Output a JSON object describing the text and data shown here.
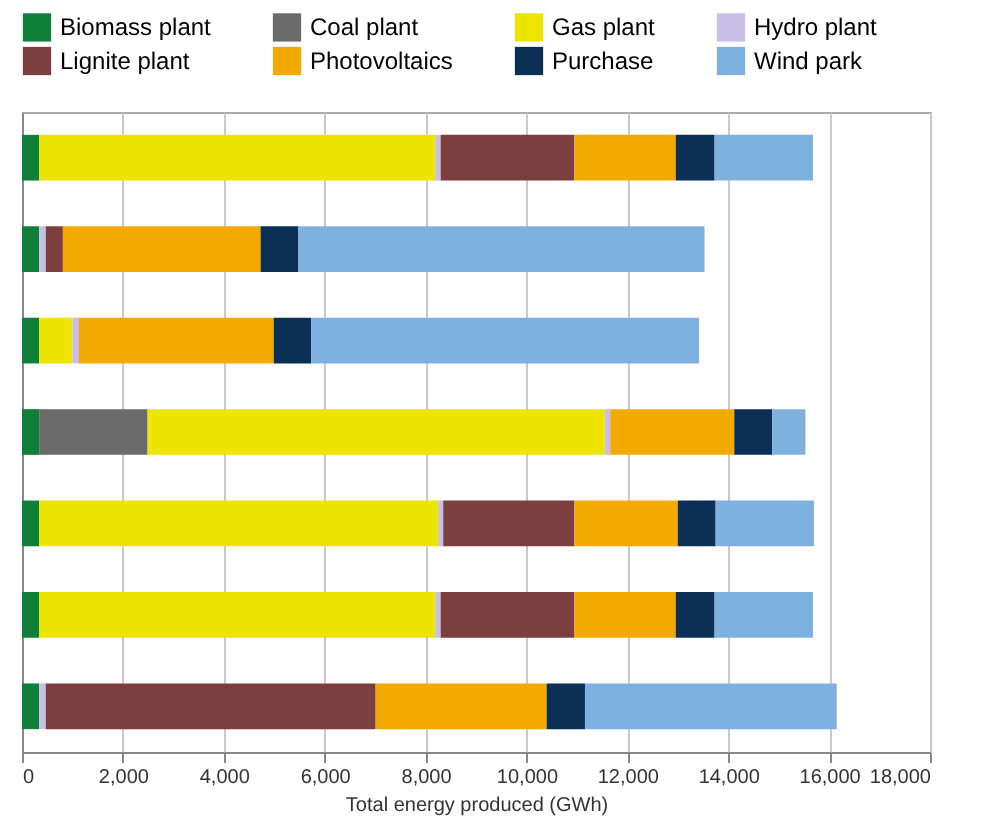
{
  "chart_data": {
    "type": "bar",
    "orientation": "horizontal",
    "stacked": true,
    "xlabel": "Total energy produced (GWh)",
    "categories": [
      null,
      null,
      null,
      null,
      null,
      null,
      null
    ],
    "series": [
      {
        "name": "Biomass plant",
        "color": "#0f7f3a",
        "values": [
          340,
          340,
          340,
          340,
          340,
          340,
          340
        ]
      },
      {
        "name": "Coal plant",
        "color": "#6b6b6b",
        "values": [
          null,
          null,
          null,
          2150,
          null,
          null,
          null
        ]
      },
      {
        "name": "Gas plant",
        "color": "#ede500",
        "values": [
          7850,
          null,
          660,
          9060,
          7910,
          7850,
          null
        ]
      },
      {
        "name": "Hydro plant",
        "color": "#c8bfe7",
        "values": [
          110,
          130,
          130,
          110,
          100,
          110,
          130
        ]
      },
      {
        "name": "Lignite plant",
        "color": "#7b3f3f",
        "values": [
          2650,
          340,
          null,
          null,
          2600,
          2650,
          6540
        ]
      },
      {
        "name": "Photovoltaics",
        "color": "#f2a900",
        "values": [
          2010,
          3920,
          3860,
          2460,
          2050,
          2010,
          3390
        ]
      },
      {
        "name": "Purchase",
        "color": "#0b2f55",
        "values": [
          770,
          750,
          740,
          750,
          750,
          770,
          760
        ]
      },
      {
        "name": "Wind park",
        "color": "#7eb1e0",
        "values": [
          1950,
          8050,
          7690,
          660,
          1950,
          1950,
          4990
        ]
      }
    ],
    "xlim": [
      0,
      18000
    ],
    "xticks": [
      {
        "value": 0,
        "label": "0"
      },
      {
        "value": 2000,
        "label": "2,000"
      },
      {
        "value": 4000,
        "label": "4,000"
      },
      {
        "value": 6000,
        "label": "6,000"
      },
      {
        "value": 8000,
        "label": "8,000"
      },
      {
        "value": 10000,
        "label": "10,000"
      },
      {
        "value": 12000,
        "label": "12,000"
      },
      {
        "value": 14000,
        "label": "14,000"
      },
      {
        "value": 16000,
        "label": "16,000"
      },
      {
        "value": 18000,
        "label": "18,000"
      }
    ],
    "grid": "x",
    "legend": "top",
    "tick_labels": "x"
  }
}
